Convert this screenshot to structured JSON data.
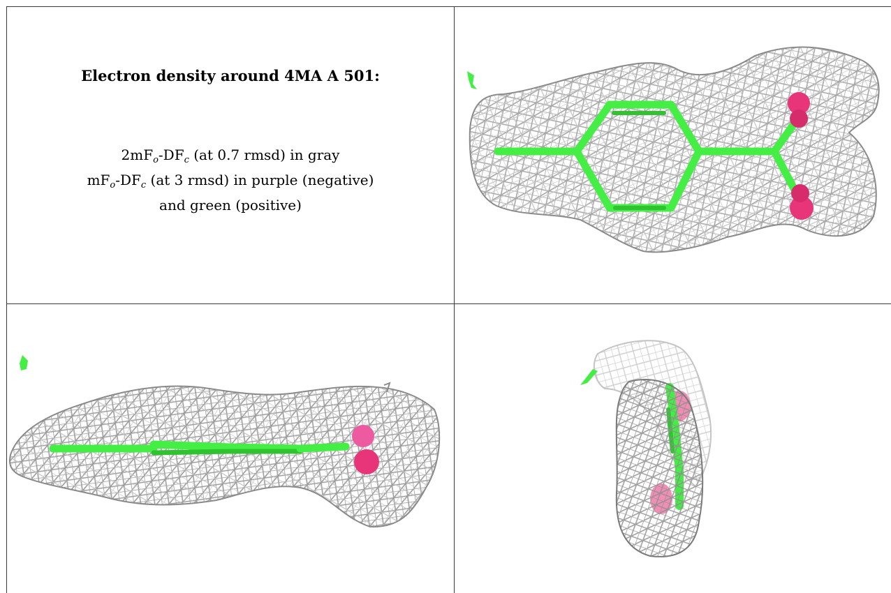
{
  "caption": {
    "title": "Electron density around 4MA A 501:",
    "line1_prefix": "2mF",
    "line1_sub1": "o",
    "line1_mid": "-DF",
    "line1_sub2": "c",
    "line1_suffix": " (at 0.7 rmsd) in gray",
    "line2_prefix": "mF",
    "line2_sub1": "o",
    "line2_mid": "-DF",
    "line2_sub2": "c",
    "line2_suffix": " (at 3 rmsd) in purple (negative)",
    "line3": "and green (positive)"
  },
  "colors": {
    "mesh_gray": "#9a9a9a",
    "mesh_light": "#c8c8c8",
    "ligand_green": "#44ee44",
    "oxygen_pink": "#e8357a",
    "border": "#3a3a3a"
  },
  "panels": [
    {
      "name": "top-right-view",
      "view": "face-on"
    },
    {
      "name": "bottom-left-view",
      "view": "edge-on"
    },
    {
      "name": "bottom-right-view",
      "view": "end-on"
    }
  ]
}
